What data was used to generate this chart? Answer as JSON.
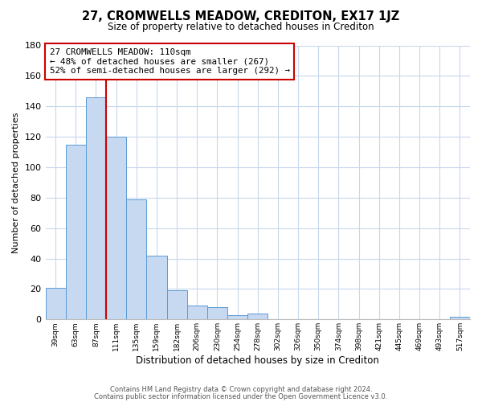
{
  "title": "27, CROMWELLS MEADOW, CREDITON, EX17 1JZ",
  "subtitle": "Size of property relative to detached houses in Crediton",
  "xlabel": "Distribution of detached houses by size in Crediton",
  "ylabel": "Number of detached properties",
  "bar_values": [
    21,
    115,
    146,
    120,
    79,
    42,
    19,
    9,
    8,
    3,
    4,
    0,
    0,
    0,
    0,
    0,
    0,
    0,
    0,
    0,
    2
  ],
  "bar_labels": [
    "39sqm",
    "63sqm",
    "87sqm",
    "111sqm",
    "135sqm",
    "159sqm",
    "182sqm",
    "206sqm",
    "230sqm",
    "254sqm",
    "278sqm",
    "302sqm",
    "326sqm",
    "350sqm",
    "374sqm",
    "398sqm",
    "421sqm",
    "445sqm",
    "469sqm",
    "493sqm",
    "517sqm"
  ],
  "bar_color": "#c6d9f0",
  "bar_edge_color": "#5b9bd5",
  "vline_x_index": 2.5,
  "vline_color": "#cc0000",
  "annotation_line0": "27 CROMWELLS MEADOW: 110sqm",
  "annotation_line1": "← 48% of detached houses are smaller (267)",
  "annotation_line2": "52% of semi-detached houses are larger (292) →",
  "annotation_box_color": "#ffffff",
  "annotation_box_edge": "#cc0000",
  "ylim": [
    0,
    180
  ],
  "yticks": [
    0,
    20,
    40,
    60,
    80,
    100,
    120,
    140,
    160,
    180
  ],
  "footer1": "Contains HM Land Registry data © Crown copyright and database right 2024.",
  "footer2": "Contains public sector information licensed under the Open Government Licence v3.0.",
  "background_color": "#ffffff",
  "grid_color": "#c8d8ec"
}
